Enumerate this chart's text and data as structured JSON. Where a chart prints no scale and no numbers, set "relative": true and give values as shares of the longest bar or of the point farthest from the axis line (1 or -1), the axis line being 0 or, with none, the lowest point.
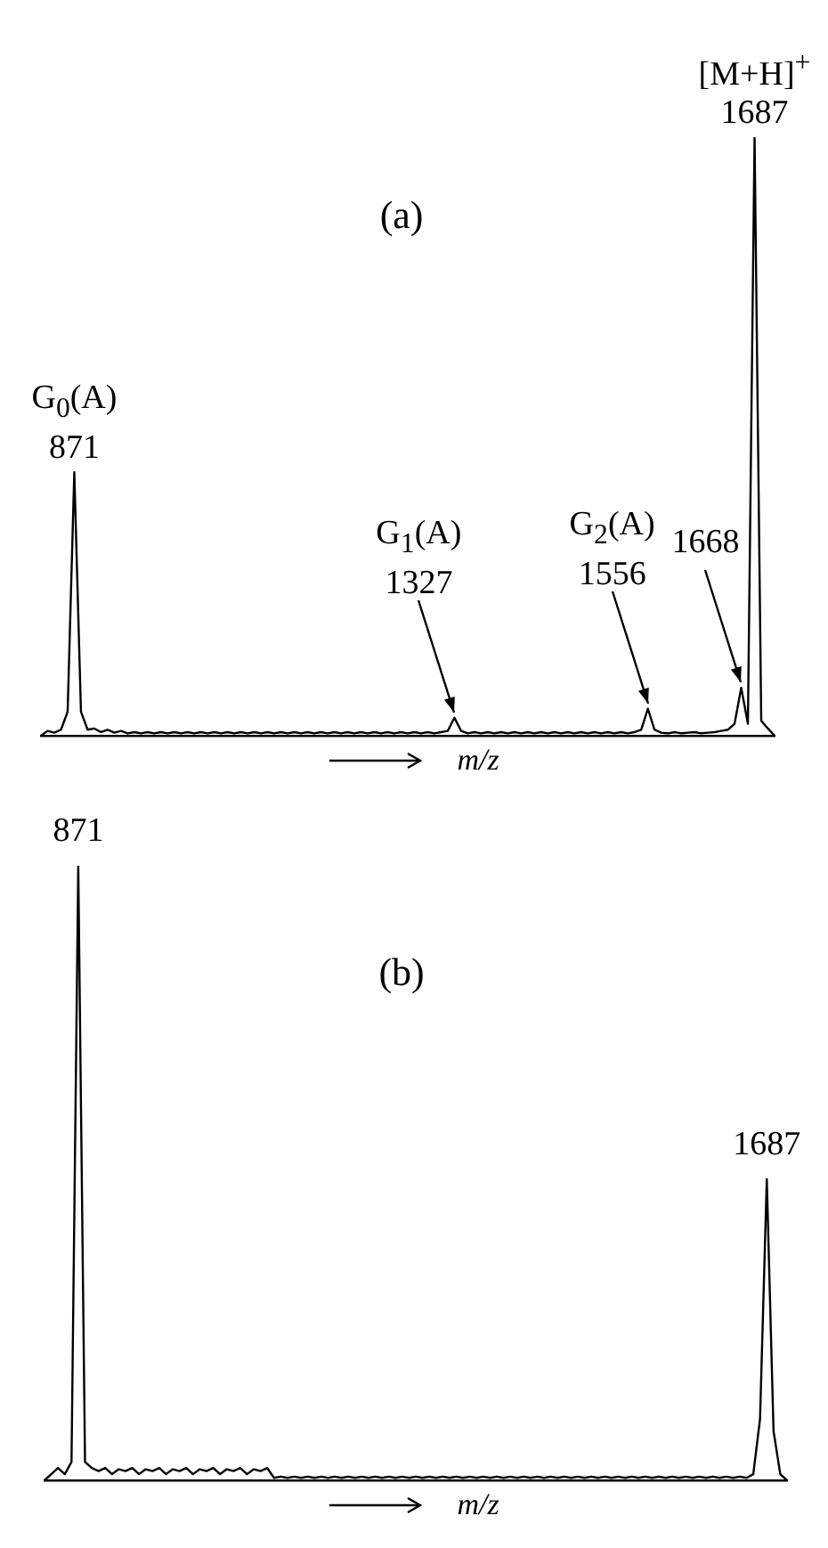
{
  "chart_data": [
    {
      "type": "line",
      "title": "(a)",
      "xlabel": "m/z",
      "relative": true,
      "tick_labels": false,
      "categories": [
        null,
        null,
        null,
        null,
        null,
        null,
        null,
        null,
        null,
        null,
        null,
        null,
        null,
        null,
        null,
        null,
        null,
        null,
        null,
        null,
        null,
        null,
        null,
        null,
        null,
        null,
        null,
        null,
        null,
        null,
        null,
        null,
        null,
        null,
        null,
        null,
        null,
        null,
        null,
        null,
        null,
        null,
        null,
        null,
        null,
        null,
        null,
        null,
        null,
        null,
        null,
        null,
        null,
        null,
        null,
        null,
        null,
        null,
        null,
        null,
        null,
        null,
        null,
        null,
        null,
        null,
        null,
        null,
        null,
        null,
        null,
        null,
        null,
        null,
        null,
        null,
        null,
        null,
        null,
        null,
        null,
        null,
        null,
        null,
        null,
        null,
        null,
        null,
        null,
        null,
        null,
        null,
        null,
        null,
        null,
        null,
        null,
        null,
        null,
        null,
        null,
        null,
        null,
        null,
        null,
        null,
        null,
        null,
        null,
        null,
        null
      ],
      "series": [
        {
          "color": "#000000",
          "values": [
            0,
            0.008,
            0.005,
            0.01,
            0.04,
            0.44,
            0.04,
            0.01,
            0.012,
            0.006,
            0.01,
            0.005,
            0.008,
            0.004,
            0.006,
            0.004,
            0.006,
            0.004,
            0.006,
            0.004,
            0.006,
            0.004,
            0.006,
            0.004,
            0.006,
            0.004,
            0.006,
            0.004,
            0.006,
            0.004,
            0.006,
            0.004,
            0.006,
            0.004,
            0.006,
            0.004,
            0.006,
            0.004,
            0.006,
            0.004,
            0.006,
            0.004,
            0.006,
            0.004,
            0.006,
            0.004,
            0.006,
            0.004,
            0.006,
            0.004,
            0.006,
            0.004,
            0.006,
            0.004,
            0.006,
            0.004,
            0.006,
            0.004,
            0.006,
            0.004,
            0.006,
            0.008,
            0.03,
            0.008,
            0.004,
            0.006,
            0.004,
            0.006,
            0.004,
            0.006,
            0.004,
            0.006,
            0.004,
            0.006,
            0.004,
            0.006,
            0.004,
            0.006,
            0.004,
            0.006,
            0.004,
            0.006,
            0.004,
            0.006,
            0.004,
            0.006,
            0.004,
            0.006,
            0.004,
            0.006,
            0.01,
            0.045,
            0.01,
            0.005,
            0.004,
            0.006,
            0.004,
            0.005,
            0.006,
            0.004,
            0.005,
            0.006,
            0.008,
            0.01,
            0.02,
            0.08,
            0.02,
            1,
            0.025,
            0.012,
            0
          ]
        }
      ],
      "annotations": [
        "G$_{0}$(A)\n871",
        "G$_{1}$(A)\n1327",
        "G$_{2}$(A)\n1556",
        "1668",
        "[M+H]$^{+}$\n1687"
      ]
    },
    {
      "type": "line",
      "title": "(b)",
      "xlabel": "m/z",
      "relative": true,
      "tick_labels": false,
      "categories": [
        null,
        null,
        null,
        null,
        null,
        null,
        null,
        null,
        null,
        null,
        null,
        null,
        null,
        null,
        null,
        null,
        null,
        null,
        null,
        null,
        null,
        null,
        null,
        null,
        null,
        null,
        null,
        null,
        null,
        null,
        null,
        null,
        null,
        null,
        null,
        null,
        null,
        null,
        null,
        null,
        null,
        null,
        null,
        null,
        null,
        null,
        null,
        null,
        null,
        null,
        null,
        null,
        null,
        null,
        null,
        null,
        null,
        null,
        null,
        null,
        null,
        null,
        null,
        null,
        null,
        null,
        null,
        null,
        null,
        null,
        null,
        null,
        null,
        null,
        null,
        null,
        null,
        null,
        null,
        null,
        null,
        null,
        null,
        null,
        null,
        null,
        null,
        null,
        null,
        null,
        null,
        null,
        null,
        null,
        null,
        null,
        null,
        null,
        null,
        null,
        null,
        null,
        null,
        null,
        null,
        null,
        null,
        null,
        null,
        null,
        null
      ],
      "series": [
        {
          "color": "#000000",
          "values": [
            0,
            0.01,
            0.02,
            0.01,
            0.03,
            1,
            0.03,
            0.02,
            0.015,
            0.02,
            0.01,
            0.018,
            0.015,
            0.02,
            0.01,
            0.018,
            0.015,
            0.02,
            0.01,
            0.018,
            0.015,
            0.02,
            0.01,
            0.018,
            0.015,
            0.02,
            0.01,
            0.018,
            0.015,
            0.02,
            0.01,
            0.018,
            0.015,
            0.02,
            0.004,
            0.006,
            0.004,
            0.006,
            0.004,
            0.006,
            0.004,
            0.006,
            0.004,
            0.006,
            0.004,
            0.006,
            0.004,
            0.006,
            0.004,
            0.006,
            0.004,
            0.006,
            0.004,
            0.006,
            0.004,
            0.006,
            0.004,
            0.006,
            0.004,
            0.006,
            0.004,
            0.006,
            0.004,
            0.006,
            0.004,
            0.006,
            0.004,
            0.006,
            0.004,
            0.006,
            0.004,
            0.006,
            0.004,
            0.006,
            0.004,
            0.006,
            0.004,
            0.006,
            0.004,
            0.006,
            0.004,
            0.006,
            0.004,
            0.006,
            0.004,
            0.006,
            0.004,
            0.006,
            0.004,
            0.006,
            0.004,
            0.006,
            0.004,
            0.006,
            0.004,
            0.006,
            0.004,
            0.006,
            0.004,
            0.006,
            0.004,
            0.006,
            0.004,
            0.006,
            0.004,
            0.01,
            0.1,
            0.49,
            0.08,
            0.01,
            0
          ]
        }
      ],
      "annotations": [
        "871",
        "1687"
      ]
    }
  ]
}
